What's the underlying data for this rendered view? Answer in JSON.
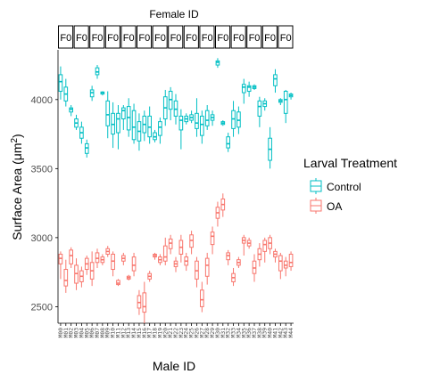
{
  "chart_data": {
    "type": "boxplot",
    "top_title": "Female ID",
    "xlabel": "Male ID",
    "ylabel_main": "Surface Area (",
    "ylabel_unit": "μm",
    "ylabel_sup": "2",
    "ylabel_close": ")",
    "ylim": [
      2380,
      4360
    ],
    "yticks": [
      2500,
      3000,
      3500,
      4000
    ],
    "facet_labels": [
      "F0",
      "F0",
      "F0",
      "F0",
      "F0",
      "F0",
      "F0",
      "F0",
      "F0",
      "F0",
      "F0",
      "F0",
      "F0",
      "F0",
      "F0"
    ],
    "male_labels": [
      "M00",
      "M01",
      "M02",
      "M03",
      "M04",
      "M05",
      "M06",
      "M07",
      "M08",
      "M09",
      "M10",
      "M11",
      "M12",
      "M13",
      "M14",
      "M15",
      "M16",
      "M17",
      "M18",
      "M19",
      "M20",
      "M21",
      "M22",
      "M23",
      "M24",
      "M25",
      "M26",
      "M27",
      "M28",
      "M29",
      "M30",
      "M31",
      "M32",
      "M33",
      "M34",
      "M35",
      "M36",
      "M37",
      "M38",
      "M39",
      "M40",
      "M41",
      "M42",
      "M43",
      "M44"
    ],
    "legend_title": "Larval Treatment",
    "legend_entries": [
      "Control",
      "OA"
    ],
    "colors": {
      "Control": "#00BFC4",
      "OA": "#F8766D"
    },
    "series": [
      {
        "name": "Control",
        "boxes": [
          {
            "min": 4000,
            "q1": 4060,
            "med": 4130,
            "q3": 4180,
            "max": 4240
          },
          {
            "min": 3950,
            "q1": 3990,
            "med": 4040,
            "q3": 4090,
            "max": 4150
          },
          {
            "min": 3880,
            "q1": 3910,
            "med": 3930,
            "q3": 3940,
            "max": 3960
          },
          {
            "min": 3780,
            "q1": 3800,
            "med": 3830,
            "q3": 3860,
            "max": 3890
          },
          {
            "min": 3680,
            "q1": 3720,
            "med": 3760,
            "q3": 3800,
            "max": 3840
          },
          {
            "min": 3580,
            "q1": 3610,
            "med": 3650,
            "q3": 3680,
            "max": 3710
          },
          {
            "min": 3990,
            "q1": 4020,
            "med": 4050,
            "q3": 4070,
            "max": 4100
          },
          {
            "min": 4150,
            "q1": 4180,
            "med": 4200,
            "q3": 4230,
            "max": 4250
          },
          {
            "min": 4030,
            "q1": 4040,
            "med": 4050,
            "q3": 4055,
            "max": 4060
          },
          {
            "min": 3720,
            "q1": 3810,
            "med": 3890,
            "q3": 3990,
            "max": 4060
          },
          {
            "min": 3650,
            "q1": 3750,
            "med": 3820,
            "q3": 3900,
            "max": 3980
          },
          {
            "min": 3640,
            "q1": 3760,
            "med": 3860,
            "q3": 3900,
            "max": 3960
          },
          {
            "min": 3780,
            "q1": 3860,
            "med": 3920,
            "q3": 3940,
            "max": 3960
          },
          {
            "min": 3730,
            "q1": 3780,
            "med": 3870,
            "q3": 3950,
            "max": 4010
          },
          {
            "min": 3680,
            "q1": 3710,
            "med": 3800,
            "q3": 3920,
            "max": 3970
          },
          {
            "min": 3630,
            "q1": 3700,
            "med": 3770,
            "q3": 3840,
            "max": 3900
          },
          {
            "min": 3700,
            "q1": 3760,
            "med": 3820,
            "q3": 3880,
            "max": 3920
          },
          {
            "min": 3680,
            "q1": 3730,
            "med": 3800,
            "q3": 3880,
            "max": 3950
          },
          {
            "min": 3690,
            "q1": 3710,
            "med": 3730,
            "q3": 3760,
            "max": 3780
          },
          {
            "min": 3680,
            "q1": 3740,
            "med": 3800,
            "q3": 3840,
            "max": 3870
          },
          {
            "min": 3810,
            "q1": 3860,
            "med": 3940,
            "q3": 4020,
            "max": 4070
          },
          {
            "min": 3850,
            "q1": 3930,
            "med": 4000,
            "q3": 4060,
            "max": 4090
          },
          {
            "min": 3820,
            "q1": 3880,
            "med": 3930,
            "q3": 3990,
            "max": 4040
          },
          {
            "min": 3640,
            "q1": 3780,
            "med": 3850,
            "q3": 3880,
            "max": 3930
          },
          {
            "min": 3820,
            "q1": 3840,
            "med": 3860,
            "q3": 3880,
            "max": 3900
          },
          {
            "min": 3830,
            "q1": 3850,
            "med": 3870,
            "q3": 3890,
            "max": 3920
          },
          {
            "min": 3730,
            "q1": 3790,
            "med": 3830,
            "q3": 3900,
            "max": 4010
          },
          {
            "min": 3680,
            "q1": 3740,
            "med": 3820,
            "q3": 3880,
            "max": 3920
          },
          {
            "min": 3780,
            "q1": 3810,
            "med": 3850,
            "q3": 3920,
            "max": 3960
          },
          {
            "min": 3810,
            "q1": 3850,
            "med": 3870,
            "q3": 3890,
            "max": 3920
          },
          {
            "min": 4230,
            "q1": 4250,
            "med": 4270,
            "q3": 4280,
            "max": 4300
          },
          {
            "min": 3810,
            "q1": 3820,
            "med": 3830,
            "q3": 3840,
            "max": 3850
          },
          {
            "min": 3620,
            "q1": 3650,
            "med": 3680,
            "q3": 3730,
            "max": 3760
          },
          {
            "min": 3730,
            "q1": 3790,
            "med": 3860,
            "q3": 3920,
            "max": 3990
          },
          {
            "min": 3750,
            "q1": 3800,
            "med": 3850,
            "q3": 3910,
            "max": 3950
          },
          {
            "min": 3970,
            "q1": 4050,
            "med": 4090,
            "q3": 4110,
            "max": 4150
          },
          {
            "min": 4020,
            "q1": 4060,
            "med": 4090,
            "q3": 4100,
            "max": 4130
          },
          {
            "min": 4070,
            "q1": 4080,
            "med": 4090,
            "q3": 4100,
            "max": 4110
          },
          {
            "min": 3800,
            "q1": 3880,
            "med": 3950,
            "q3": 3990,
            "max": 4020
          },
          {
            "min": 3920,
            "q1": 3950,
            "med": 3970,
            "q3": 3990,
            "max": 4010
          },
          {
            "min": 3500,
            "q1": 3560,
            "med": 3640,
            "q3": 3720,
            "max": 3800
          },
          {
            "min": 4050,
            "q1": 4100,
            "med": 4150,
            "q3": 4180,
            "max": 4220
          },
          {
            "min": 3960,
            "q1": 3980,
            "med": 3990,
            "q3": 4000,
            "max": 4010
          },
          {
            "min": 3830,
            "q1": 3900,
            "med": 4000,
            "q3": 4060,
            "max": 4070
          },
          {
            "min": 4000,
            "q1": 4020,
            "med": 4030,
            "q3": 4040,
            "max": 4050
          }
        ]
      },
      {
        "name": "OA",
        "boxes": [
          {
            "min": 2700,
            "q1": 2810,
            "med": 2850,
            "q3": 2880,
            "max": 2900
          },
          {
            "min": 2600,
            "q1": 2650,
            "med": 2690,
            "q3": 2770,
            "max": 2840
          },
          {
            "min": 2780,
            "q1": 2810,
            "med": 2870,
            "q3": 2910,
            "max": 2930
          },
          {
            "min": 2620,
            "q1": 2670,
            "med": 2740,
            "q3": 2800,
            "max": 2850
          },
          {
            "min": 2640,
            "q1": 2680,
            "med": 2720,
            "q3": 2760,
            "max": 2790
          },
          {
            "min": 2730,
            "q1": 2770,
            "med": 2810,
            "q3": 2850,
            "max": 2870
          },
          {
            "min": 2650,
            "q1": 2700,
            "med": 2760,
            "q3": 2820,
            "max": 2900
          },
          {
            "min": 2780,
            "q1": 2820,
            "med": 2850,
            "q3": 2890,
            "max": 2920
          },
          {
            "min": 2800,
            "q1": 2820,
            "med": 2840,
            "q3": 2860,
            "max": 2880
          },
          {
            "min": 2860,
            "q1": 2880,
            "med": 2900,
            "q3": 2920,
            "max": 2940
          },
          {
            "min": 2720,
            "q1": 2770,
            "med": 2830,
            "q3": 2880,
            "max": 2900
          },
          {
            "min": 2650,
            "q1": 2660,
            "med": 2670,
            "q3": 2690,
            "max": 2700
          },
          {
            "min": 2800,
            "q1": 2830,
            "med": 2850,
            "q3": 2870,
            "max": 2890
          },
          {
            "min": 2690,
            "q1": 2700,
            "med": 2710,
            "q3": 2720,
            "max": 2730
          },
          {
            "min": 2720,
            "q1": 2760,
            "med": 2800,
            "q3": 2860,
            "max": 2890
          },
          {
            "min": 2440,
            "q1": 2490,
            "med": 2530,
            "q3": 2580,
            "max": 2620
          },
          {
            "min": 2380,
            "q1": 2460,
            "med": 2500,
            "q3": 2600,
            "max": 2680
          },
          {
            "min": 2680,
            "q1": 2700,
            "med": 2720,
            "q3": 2740,
            "max": 2760
          },
          {
            "min": 2840,
            "q1": 2860,
            "med": 2870,
            "q3": 2880,
            "max": 2890
          },
          {
            "min": 2800,
            "q1": 2820,
            "med": 2840,
            "q3": 2860,
            "max": 2880
          },
          {
            "min": 2800,
            "q1": 2830,
            "med": 2860,
            "q3": 2940,
            "max": 3000
          },
          {
            "min": 2880,
            "q1": 2920,
            "med": 2960,
            "q3": 2990,
            "max": 3020
          },
          {
            "min": 2750,
            "q1": 2790,
            "med": 2810,
            "q3": 2830,
            "max": 2860
          },
          {
            "min": 2820,
            "q1": 2880,
            "med": 2930,
            "q3": 2980,
            "max": 3020
          },
          {
            "min": 2760,
            "q1": 2800,
            "med": 2830,
            "q3": 2860,
            "max": 2890
          },
          {
            "min": 2880,
            "q1": 2930,
            "med": 2980,
            "q3": 3020,
            "max": 3050
          },
          {
            "min": 2640,
            "q1": 2700,
            "med": 2760,
            "q3": 2830,
            "max": 2860
          },
          {
            "min": 2460,
            "q1": 2500,
            "med": 2550,
            "q3": 2620,
            "max": 2680
          },
          {
            "min": 2660,
            "q1": 2720,
            "med": 2800,
            "q3": 2850,
            "max": 2890
          },
          {
            "min": 2880,
            "q1": 2950,
            "med": 3010,
            "q3": 3040,
            "max": 3080
          },
          {
            "min": 3080,
            "q1": 3140,
            "med": 3180,
            "q3": 3220,
            "max": 3260
          },
          {
            "min": 3150,
            "q1": 3200,
            "med": 3240,
            "q3": 3280,
            "max": 3320
          },
          {
            "min": 2800,
            "q1": 2840,
            "med": 2870,
            "q3": 2890,
            "max": 2910
          },
          {
            "min": 2650,
            "q1": 2680,
            "med": 2710,
            "q3": 2740,
            "max": 2780
          },
          {
            "min": 2780,
            "q1": 2800,
            "med": 2820,
            "q3": 2840,
            "max": 2860
          },
          {
            "min": 2870,
            "q1": 2960,
            "med": 2980,
            "q3": 3000,
            "max": 3020
          },
          {
            "min": 2920,
            "q1": 2940,
            "med": 2960,
            "q3": 2980,
            "max": 3000
          },
          {
            "min": 2680,
            "q1": 2740,
            "med": 2780,
            "q3": 2830,
            "max": 2880
          },
          {
            "min": 2790,
            "q1": 2840,
            "med": 2880,
            "q3": 2920,
            "max": 2960
          },
          {
            "min": 2820,
            "q1": 2900,
            "med": 2950,
            "q3": 2980,
            "max": 3000
          },
          {
            "min": 2880,
            "q1": 2920,
            "med": 2960,
            "q3": 3000,
            "max": 3020
          },
          {
            "min": 2820,
            "q1": 2860,
            "med": 2880,
            "q3": 2900,
            "max": 2920
          },
          {
            "min": 2700,
            "q1": 2760,
            "med": 2830,
            "q3": 2870,
            "max": 2890
          },
          {
            "min": 2720,
            "q1": 2780,
            "med": 2800,
            "q3": 2830,
            "max": 2860
          },
          {
            "min": 2760,
            "q1": 2790,
            "med": 2820,
            "q3": 2880,
            "max": 2900
          }
        ]
      }
    ]
  }
}
